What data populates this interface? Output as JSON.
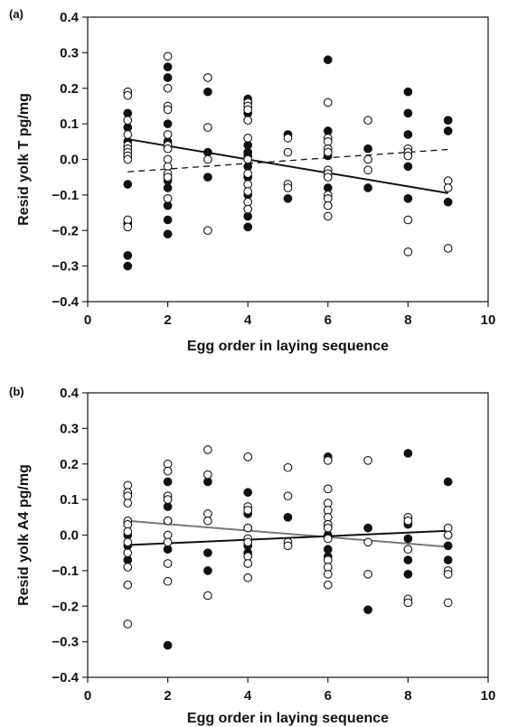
{
  "chart_data": [
    {
      "type": "scatter",
      "panel_label": "(a)",
      "xlabel": "Egg order in laying sequence",
      "ylabel": "Resid yolk T pg/mg",
      "xlim": [
        0,
        10
      ],
      "ylim": [
        -0.4,
        0.4
      ],
      "xticks": [
        "0",
        "2",
        "4",
        "6",
        "8",
        "10"
      ],
      "yticks": [
        "0.4",
        "0.3",
        "0.2",
        "0.1",
        "0.0",
        "−0.1",
        "−0.2",
        "−0.3",
        "−0.4"
      ],
      "grid": false,
      "series": [
        {
          "marker": "filled-circle",
          "color": "#111111",
          "points": [
            [
              1,
              0.13
            ],
            [
              1,
              0.09
            ],
            [
              1,
              0.05
            ],
            [
              1,
              0.01
            ],
            [
              1,
              -0.07
            ],
            [
              1,
              -0.18
            ],
            [
              1,
              -0.27
            ],
            [
              1,
              -0.3
            ],
            [
              2,
              0.26
            ],
            [
              2,
              0.23
            ],
            [
              2,
              0.1
            ],
            [
              2,
              0.05
            ],
            [
              2,
              -0.06
            ],
            [
              2,
              -0.08
            ],
            [
              2,
              -0.13
            ],
            [
              2,
              -0.17
            ],
            [
              2,
              -0.21
            ],
            [
              3,
              0.19
            ],
            [
              3,
              0.02
            ],
            [
              3,
              -0.05
            ],
            [
              4,
              0.17
            ],
            [
              4,
              0.16
            ],
            [
              4,
              0.13
            ],
            [
              4,
              0.04
            ],
            [
              4,
              0.02
            ],
            [
              4,
              0.01
            ],
            [
              4,
              -0.02
            ],
            [
              4,
              -0.05
            ],
            [
              4,
              -0.1
            ],
            [
              4,
              -0.16
            ],
            [
              4,
              -0.19
            ],
            [
              5,
              0.07
            ],
            [
              5,
              -0.11
            ],
            [
              6,
              0.28
            ],
            [
              6,
              0.08
            ],
            [
              6,
              0.01
            ],
            [
              6,
              -0.08
            ],
            [
              7,
              0.03
            ],
            [
              7,
              -0.08
            ],
            [
              8,
              0.19
            ],
            [
              8,
              0.13
            ],
            [
              8,
              0.07
            ],
            [
              8,
              -0.02
            ],
            [
              8,
              -0.11
            ],
            [
              9,
              0.11
            ],
            [
              9,
              0.08
            ],
            [
              9,
              -0.12
            ]
          ]
        },
        {
          "marker": "open-circle",
          "color": "#111111",
          "points": [
            [
              1,
              0.19
            ],
            [
              1,
              0.18
            ],
            [
              1,
              0.11
            ],
            [
              1,
              0.07
            ],
            [
              1,
              0.04
            ],
            [
              1,
              0.03
            ],
            [
              1,
              0.02
            ],
            [
              1,
              0.01
            ],
            [
              1,
              0.0
            ],
            [
              1,
              -0.17
            ],
            [
              1,
              -0.19
            ],
            [
              2,
              0.29
            ],
            [
              2,
              0.2
            ],
            [
              2,
              0.15
            ],
            [
              2,
              0.14
            ],
            [
              2,
              0.07
            ],
            [
              2,
              0.04
            ],
            [
              2,
              0.03
            ],
            [
              2,
              0.0
            ],
            [
              2,
              -0.02
            ],
            [
              2,
              -0.04
            ],
            [
              2,
              -0.05
            ],
            [
              2,
              -0.11
            ],
            [
              3,
              0.23
            ],
            [
              3,
              0.09
            ],
            [
              3,
              0.0
            ],
            [
              3,
              -0.2
            ],
            [
              4,
              0.16
            ],
            [
              4,
              0.15
            ],
            [
              4,
              0.14
            ],
            [
              4,
              0.11
            ],
            [
              4,
              0.06
            ],
            [
              4,
              0.0
            ],
            [
              4,
              -0.04
            ],
            [
              4,
              -0.07
            ],
            [
              4,
              -0.09
            ],
            [
              4,
              -0.12
            ],
            [
              4,
              -0.14
            ],
            [
              5,
              0.06
            ],
            [
              5,
              0.02
            ],
            [
              5,
              -0.07
            ],
            [
              5,
              -0.08
            ],
            [
              6,
              0.16
            ],
            [
              6,
              0.06
            ],
            [
              6,
              0.05
            ],
            [
              6,
              0.03
            ],
            [
              6,
              0.02
            ],
            [
              6,
              -0.03
            ],
            [
              6,
              -0.04
            ],
            [
              6,
              -0.05
            ],
            [
              6,
              -0.1
            ],
            [
              6,
              -0.11
            ],
            [
              6,
              -0.13
            ],
            [
              6,
              -0.16
            ],
            [
              7,
              0.11
            ],
            [
              7,
              0.0
            ],
            [
              7,
              -0.03
            ],
            [
              8,
              0.03
            ],
            [
              8,
              0.02
            ],
            [
              8,
              0.01
            ],
            [
              8,
              -0.17
            ],
            [
              8,
              -0.26
            ],
            [
              9,
              -0.06
            ],
            [
              9,
              -0.08
            ],
            [
              9,
              -0.25
            ]
          ]
        }
      ],
      "trend_lines": [
        {
          "style": "solid",
          "color": "#111111",
          "x": [
            1,
            9
          ],
          "y": [
            0.057,
            -0.095
          ]
        },
        {
          "style": "dashed",
          "color": "#111111",
          "x": [
            1,
            9
          ],
          "y": [
            -0.035,
            0.028
          ]
        }
      ]
    },
    {
      "type": "scatter",
      "panel_label": "(b)",
      "xlabel": "Egg order in laying sequence",
      "ylabel": "Resid yolk A4 pg/mg",
      "xlim": [
        0,
        10
      ],
      "ylim": [
        -0.4,
        0.4
      ],
      "xticks": [
        "0",
        "2",
        "4",
        "6",
        "8",
        "10"
      ],
      "yticks": [
        "0.4",
        "0.3",
        "0.2",
        "0.1",
        "0.0",
        "−0.1",
        "−0.2",
        "−0.3",
        "−0.4"
      ],
      "grid": false,
      "series": [
        {
          "marker": "filled-circle",
          "color": "#111111",
          "points": [
            [
              1,
              0.12
            ],
            [
              1,
              0.03
            ],
            [
              1,
              0.0
            ],
            [
              1,
              -0.03
            ],
            [
              1,
              -0.07
            ],
            [
              2,
              0.15
            ],
            [
              2,
              0.08
            ],
            [
              2,
              0.04
            ],
            [
              2,
              -0.04
            ],
            [
              2,
              -0.31
            ],
            [
              3,
              0.15
            ],
            [
              3,
              -0.05
            ],
            [
              3,
              -0.1
            ],
            [
              4,
              0.12
            ],
            [
              4,
              0.06
            ],
            [
              4,
              0.02
            ],
            [
              4,
              -0.03
            ],
            [
              4,
              -0.05
            ],
            [
              5,
              0.05
            ],
            [
              6,
              0.22
            ],
            [
              6,
              0.03
            ],
            [
              6,
              0.0
            ],
            [
              6,
              -0.04
            ],
            [
              6,
              -0.06
            ],
            [
              7,
              0.02
            ],
            [
              7,
              -0.21
            ],
            [
              8,
              0.23
            ],
            [
              8,
              0.03
            ],
            [
              8,
              -0.01
            ],
            [
              8,
              -0.07
            ],
            [
              8,
              -0.11
            ],
            [
              9,
              0.15
            ],
            [
              9,
              0.0
            ],
            [
              9,
              -0.03
            ],
            [
              9,
              -0.07
            ]
          ]
        },
        {
          "marker": "open-circle",
          "color": "#111111",
          "points": [
            [
              1,
              0.14
            ],
            [
              1,
              0.12
            ],
            [
              1,
              0.11
            ],
            [
              1,
              0.09
            ],
            [
              1,
              0.04
            ],
            [
              1,
              0.03
            ],
            [
              1,
              0.01
            ],
            [
              1,
              -0.02
            ],
            [
              1,
              -0.05
            ],
            [
              1,
              -0.09
            ],
            [
              1,
              -0.14
            ],
            [
              1,
              -0.25
            ],
            [
              2,
              0.2
            ],
            [
              2,
              0.18
            ],
            [
              2,
              0.11
            ],
            [
              2,
              0.1
            ],
            [
              2,
              0.04
            ],
            [
              2,
              0.0
            ],
            [
              2,
              -0.02
            ],
            [
              2,
              -0.08
            ],
            [
              2,
              -0.13
            ],
            [
              3,
              0.24
            ],
            [
              3,
              0.17
            ],
            [
              3,
              0.06
            ],
            [
              3,
              0.04
            ],
            [
              3,
              -0.17
            ],
            [
              4,
              0.22
            ],
            [
              4,
              0.08
            ],
            [
              4,
              0.07
            ],
            [
              4,
              0.02
            ],
            [
              4,
              -0.01
            ],
            [
              4,
              -0.02
            ],
            [
              4,
              -0.06
            ],
            [
              4,
              -0.08
            ],
            [
              4,
              -0.12
            ],
            [
              5,
              0.19
            ],
            [
              5,
              0.11
            ],
            [
              5,
              -0.02
            ],
            [
              5,
              -0.03
            ],
            [
              6,
              0.21
            ],
            [
              6,
              0.13
            ],
            [
              6,
              0.09
            ],
            [
              6,
              0.07
            ],
            [
              6,
              0.05
            ],
            [
              6,
              0.03
            ],
            [
              6,
              0.02
            ],
            [
              6,
              -0.01
            ],
            [
              6,
              -0.07
            ],
            [
              6,
              -0.09
            ],
            [
              6,
              -0.11
            ],
            [
              6,
              -0.14
            ],
            [
              7,
              0.21
            ],
            [
              7,
              -0.02
            ],
            [
              7,
              -0.11
            ],
            [
              8,
              0.05
            ],
            [
              8,
              0.04
            ],
            [
              8,
              -0.04
            ],
            [
              8,
              -0.18
            ],
            [
              8,
              -0.19
            ],
            [
              9,
              0.02
            ],
            [
              9,
              0.0
            ],
            [
              9,
              -0.1
            ],
            [
              9,
              -0.11
            ],
            [
              9,
              -0.19
            ]
          ]
        }
      ],
      "trend_lines": [
        {
          "style": "solid",
          "color": "#777777",
          "x": [
            1,
            9
          ],
          "y": [
            0.04,
            -0.033
          ]
        },
        {
          "style": "solid",
          "color": "#111111",
          "x": [
            1,
            9
          ],
          "y": [
            -0.028,
            0.012
          ]
        }
      ]
    }
  ]
}
